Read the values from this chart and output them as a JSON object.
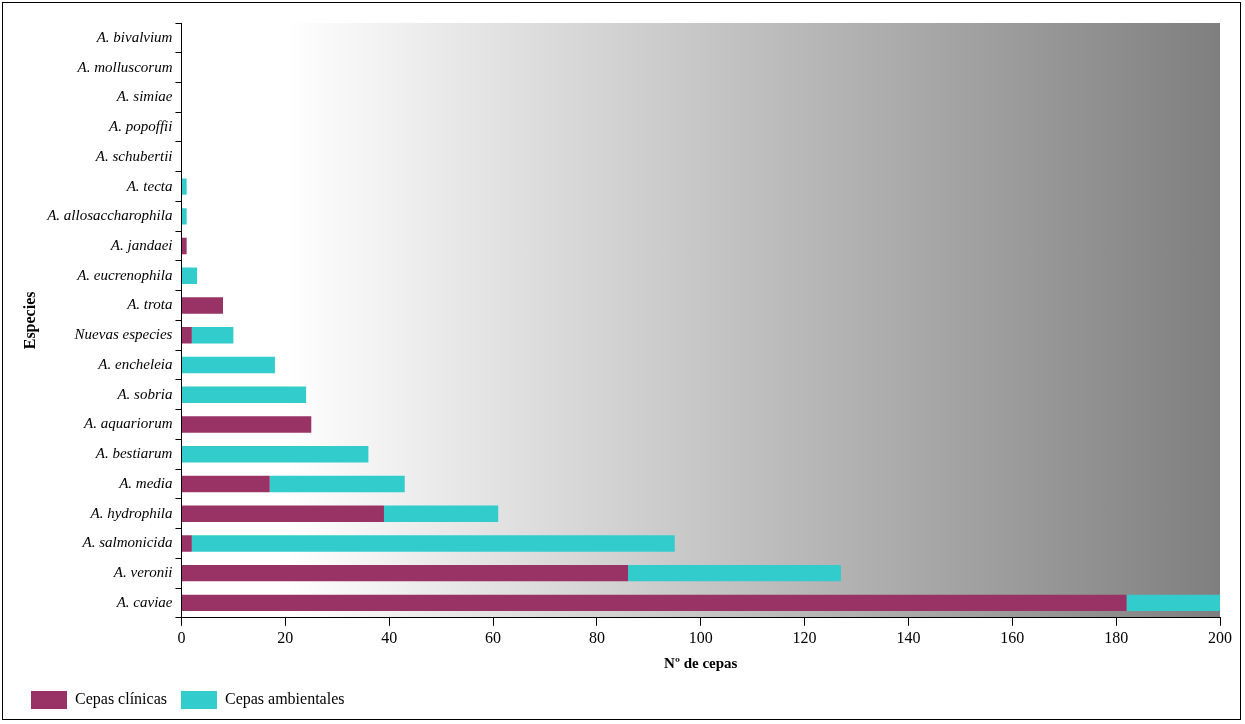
{
  "chart_data": {
    "type": "bar",
    "orientation": "horizontal",
    "stacked": true,
    "xlabel": "Nº de cepas",
    "ylabel": "Especies",
    "categories": [
      "A. bivalvium",
      "A. molluscorum",
      "A. simiae",
      "A. popoffii",
      "A. schubertii",
      "A. tecta",
      "A. allosaccharophila",
      "A. jandaei",
      "A. eucrenophila",
      "A. trota",
      "Nuevas especies",
      "A. encheleia",
      "A. sobria",
      "A. aquariorum",
      "A. bestiarum",
      "A. media",
      "A. hydrophila",
      "A. salmonicida",
      "A. veronii",
      "A. caviae"
    ],
    "series": [
      {
        "name": "Cepas clínicas",
        "color": "#993366",
        "values": [
          0,
          0,
          0,
          0,
          0,
          0,
          0,
          1,
          0,
          8,
          2,
          0,
          0,
          25,
          0,
          17,
          39,
          2,
          86,
          182
        ]
      },
      {
        "name": "Cepas ambientales",
        "color": "#33cccc",
        "values": [
          0,
          0,
          0,
          0,
          0,
          1,
          1,
          0,
          3,
          0,
          8,
          18,
          24,
          0,
          36,
          26,
          22,
          93,
          41,
          18
        ]
      }
    ],
    "xlim": [
      0,
      200
    ],
    "xticks": [
      0,
      20,
      40,
      60,
      80,
      100,
      120,
      140,
      160,
      180,
      200
    ],
    "grid": false,
    "legend": "bottom left"
  }
}
